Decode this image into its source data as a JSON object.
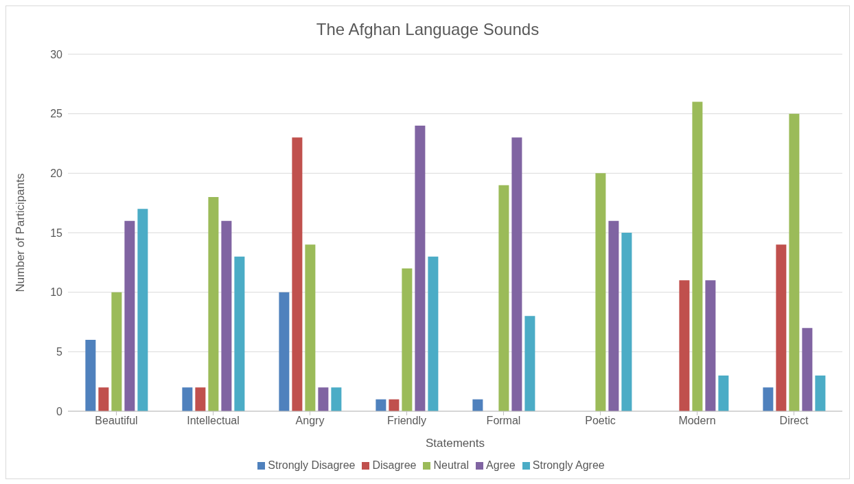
{
  "chart_data": {
    "type": "bar",
    "title": "The Afghan Language Sounds",
    "xlabel": "Statements",
    "ylabel": "Number of Participants",
    "categories": [
      "Beautiful",
      "Intellectual",
      "Angry",
      "Friendly",
      "Formal",
      "Poetic",
      "Modern",
      "Direct"
    ],
    "series": [
      {
        "name": "Strongly Disagree",
        "color": "#4f81bd",
        "values": [
          6,
          2,
          10,
          1,
          1,
          0,
          0,
          2
        ]
      },
      {
        "name": "Disagree",
        "color": "#c0504d",
        "values": [
          2,
          2,
          23,
          1,
          0,
          0,
          11,
          14
        ]
      },
      {
        "name": "Neutral",
        "color": "#9bbb59",
        "values": [
          10,
          18,
          14,
          12,
          19,
          20,
          26,
          25
        ]
      },
      {
        "name": "Agree",
        "color": "#8064a2",
        "values": [
          16,
          16,
          2,
          24,
          23,
          16,
          11,
          7
        ]
      },
      {
        "name": "Strongly Agree",
        "color": "#4bacc6",
        "values": [
          17,
          13,
          2,
          13,
          8,
          15,
          3,
          3
        ]
      }
    ],
    "ylim": [
      0,
      30
    ],
    "yticks": [
      0,
      5,
      10,
      15,
      20,
      25,
      30
    ],
    "grid": "y",
    "legend": "bottom"
  }
}
